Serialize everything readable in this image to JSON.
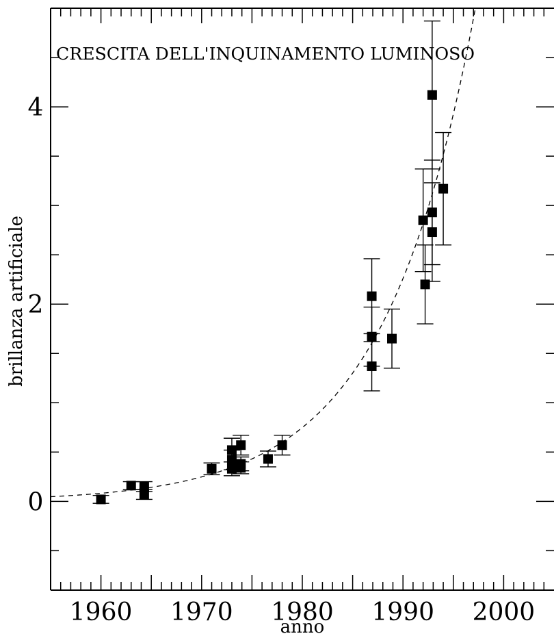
{
  "chart_data": {
    "type": "scatter",
    "title": "",
    "annotation": "CRESCITA DELL'INQUINAMENTO LUMINOSO",
    "xlabel": "anno",
    "ylabel": "brillanza artificiale",
    "xlim": [
      1955,
      2005
    ],
    "ylim": [
      -0.9,
      5.0
    ],
    "grid": false,
    "legend": "none",
    "x_ticks": [
      {
        "value": 1960,
        "label": "1960"
      },
      {
        "value": 1970,
        "label": "1970"
      },
      {
        "value": 1980,
        "label": "1980"
      },
      {
        "value": 1990,
        "label": "1990"
      },
      {
        "value": 2000,
        "label": "2000"
      }
    ],
    "y_ticks": [
      {
        "value": 0,
        "label": "0"
      },
      {
        "value": 2,
        "label": "2"
      },
      {
        "value": 4,
        "label": "4"
      }
    ],
    "x_minor_step": 1,
    "x_major_step": 5,
    "y_minor_step": 0.5,
    "series": [
      {
        "marker": "square",
        "color": "#000000",
        "points": [
          {
            "x": 1960.0,
            "y": 0.02,
            "err": 0.04
          },
          {
            "x": 1963.0,
            "y": 0.16,
            "err": 0.04
          },
          {
            "x": 1964.3,
            "y": 0.15,
            "err": 0.05
          },
          {
            "x": 1964.3,
            "y": 0.07,
            "err": 0.05
          },
          {
            "x": 1971.0,
            "y": 0.33,
            "err": 0.06
          },
          {
            "x": 1973.0,
            "y": 0.52,
            "err": 0.12
          },
          {
            "x": 1973.0,
            "y": 0.42,
            "err": 0.1
          },
          {
            "x": 1973.0,
            "y": 0.33,
            "err": 0.07
          },
          {
            "x": 1973.9,
            "y": 0.57,
            "err": 0.1
          },
          {
            "x": 1973.9,
            "y": 0.38,
            "err": 0.07
          },
          {
            "x": 1973.9,
            "y": 0.34,
            "err": 0.06
          },
          {
            "x": 1976.6,
            "y": 0.43,
            "err": 0.08
          },
          {
            "x": 1978.0,
            "y": 0.57,
            "err": 0.1
          },
          {
            "x": 1986.9,
            "y": 2.08,
            "err": 0.38
          },
          {
            "x": 1986.9,
            "y": 1.67,
            "err": 0.3
          },
          {
            "x": 1986.9,
            "y": 1.37,
            "err": 0.25
          },
          {
            "x": 1988.9,
            "y": 1.65,
            "err": 0.3
          },
          {
            "x": 1992.0,
            "y": 2.85,
            "err": 0.52
          },
          {
            "x": 1992.2,
            "y": 2.2,
            "err": 0.4
          },
          {
            "x": 1992.9,
            "y": 4.12,
            "err": 0.75
          },
          {
            "x": 1992.9,
            "y": 2.93,
            "err": 0.53
          },
          {
            "x": 1992.9,
            "y": 2.73,
            "err": 0.5
          },
          {
            "x": 1994.0,
            "y": 3.17,
            "err": 0.57
          }
        ]
      }
    ],
    "fit": {
      "style": "dashed",
      "model": "exponential",
      "a": 0.6,
      "b": 0.1105,
      "x0": 1978
    }
  }
}
